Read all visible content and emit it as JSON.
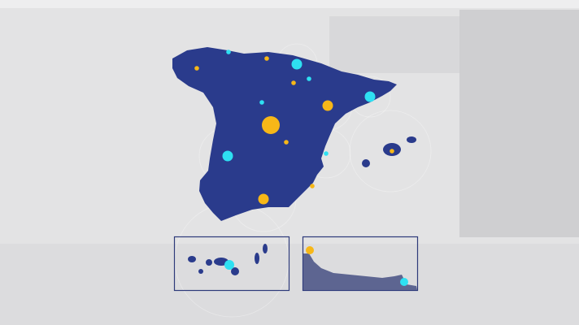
{
  "colors": {
    "background": "#e3e3e4",
    "land": "#2a3b8c",
    "inset_border": "#2e3a7a",
    "marker_yellow": "#f7b718",
    "marker_cyan": "#2ee0f2"
  },
  "markers": [
    {
      "color": "yellow",
      "size": "large"
    },
    {
      "color": "yellow",
      "size": "medium"
    },
    {
      "color": "yellow",
      "size": "medium"
    },
    {
      "color": "yellow",
      "size": "small"
    },
    {
      "color": "yellow",
      "size": "small"
    },
    {
      "color": "yellow",
      "size": "small"
    },
    {
      "color": "yellow",
      "size": "small"
    },
    {
      "color": "yellow",
      "size": "small"
    },
    {
      "color": "yellow",
      "size": "small"
    },
    {
      "color": "cyan",
      "size": "medium"
    },
    {
      "color": "cyan",
      "size": "medium"
    },
    {
      "color": "cyan",
      "size": "medium"
    },
    {
      "color": "cyan",
      "size": "small"
    },
    {
      "color": "cyan",
      "size": "small"
    },
    {
      "color": "cyan",
      "size": "small"
    },
    {
      "color": "cyan",
      "size": "small"
    }
  ],
  "insets": [
    {
      "region": "canary-islands"
    },
    {
      "region": "ceuta-melilla-coast"
    }
  ]
}
